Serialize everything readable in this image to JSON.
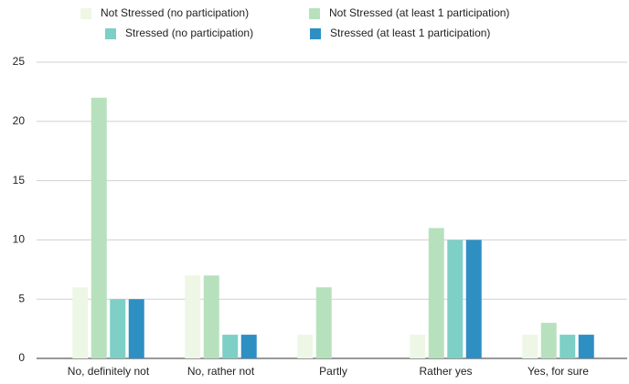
{
  "chart_data": {
    "type": "bar",
    "categories": [
      "No, definitely not",
      "No, rather not",
      "Partly",
      "Rather yes",
      "Yes, for sure"
    ],
    "series": [
      {
        "name": "Not Stressed (no participation)",
        "color": "#eef7e5",
        "values": [
          6,
          7,
          2,
          2,
          2
        ]
      },
      {
        "name": "Not Stressed (at least 1 participation)",
        "color": "#b7e1bd",
        "values": [
          22,
          7,
          6,
          11,
          3
        ]
      },
      {
        "name": "Stressed (no participation)",
        "color": "#7ecfc6",
        "values": [
          5,
          2,
          0,
          10,
          2
        ]
      },
      {
        "name": "Stressed (at least 1 participation)",
        "color": "#2e8fc3",
        "values": [
          5,
          2,
          0,
          10,
          2
        ]
      }
    ],
    "ylim": [
      0,
      25
    ],
    "yticks": [
      0,
      5,
      10,
      15,
      20,
      25
    ],
    "grid": true,
    "legend": "top"
  }
}
